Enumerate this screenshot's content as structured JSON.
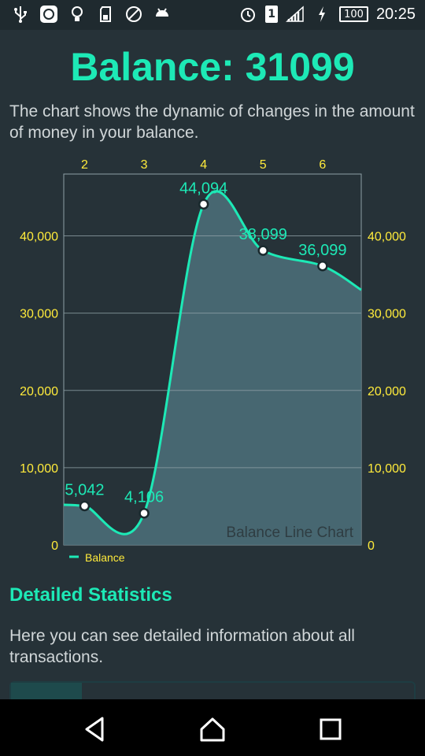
{
  "status_bar": {
    "time": "20:25",
    "battery": "100",
    "sim": "1",
    "icons": [
      "usb-icon",
      "app-notification-icon",
      "bulb-icon",
      "sd-card-icon",
      "do-not-disturb-icon",
      "android-icon",
      "alarm-icon",
      "sim-icon",
      "signal-icon",
      "charging-icon",
      "battery-icon"
    ]
  },
  "header": {
    "balance_title": "Balance: 31099",
    "chart_description": "The chart shows the dynamic of changes in the amount of money in your balance."
  },
  "chart_data": {
    "type": "line",
    "smooth": true,
    "filled": true,
    "title": "Balance Line Chart",
    "x": [
      2,
      3,
      4,
      5,
      6
    ],
    "x_tick_labels": [
      "2",
      "3",
      "4",
      "5",
      "6"
    ],
    "x_range": [
      1.65,
      6.65
    ],
    "y_ticks": [
      0,
      10000,
      20000,
      30000,
      40000
    ],
    "y_tick_labels": [
      "0",
      "10,000",
      "20,000",
      "30,000",
      "40,000"
    ],
    "ylim": [
      0,
      48000
    ],
    "series": [
      {
        "name": "Balance",
        "values": [
          5042,
          4106,
          44094,
          38099,
          36099
        ],
        "value_labels": [
          "5,042",
          "4,106",
          "44,094",
          "38,099",
          "36,099"
        ],
        "start_value": 5200,
        "end_value": 33000,
        "color": "#1de9b6"
      }
    ],
    "legend": {
      "position": "bottom-left",
      "label": "Balance"
    },
    "grid": true,
    "colors": {
      "axis_labels": "#ffeb3b",
      "fill": "#4b6d78",
      "grid": "#8fa0a6"
    }
  },
  "statistics": {
    "title": "Detailed Statistics",
    "description": "Here you can see detailed information about all transactions."
  },
  "nav_bar": {
    "back": "back-icon",
    "home": "home-icon",
    "recents": "recents-icon"
  }
}
